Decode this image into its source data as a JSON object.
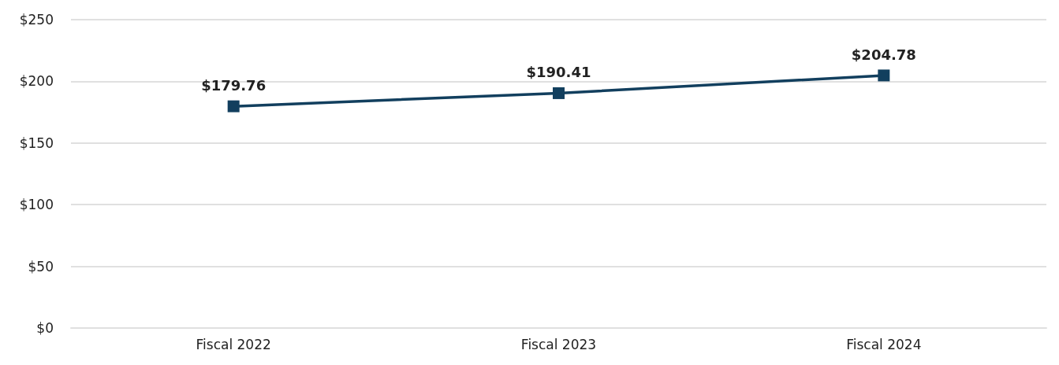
{
  "chart_data": {
    "type": "line",
    "categories": [
      "Fiscal 2022",
      "Fiscal 2023",
      "Fiscal 2024"
    ],
    "series": [
      {
        "color": "#123f5e",
        "values": [
          179.76,
          190.41,
          204.78
        ],
        "value_labels": [
          "$179.76",
          "$190.41",
          "$204.78"
        ]
      }
    ],
    "ylim": [
      0,
      250
    ],
    "yticks": [
      {
        "value": 0,
        "label": "$0"
      },
      {
        "value": 50,
        "label": "$50"
      },
      {
        "value": 100,
        "label": "$100"
      },
      {
        "value": 150,
        "label": "$150"
      },
      {
        "value": 200,
        "label": "$200"
      },
      {
        "value": 250,
        "label": "$250"
      }
    ],
    "grid": "y",
    "marker": "square",
    "line_style": "solid"
  }
}
